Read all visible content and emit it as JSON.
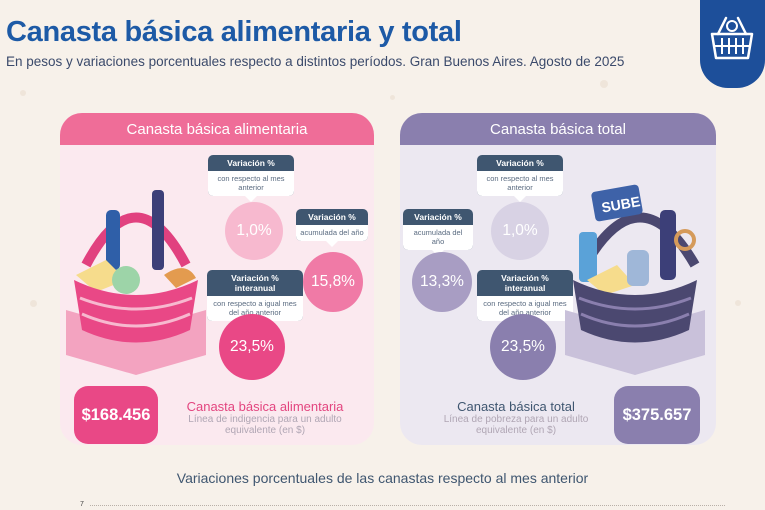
{
  "header": {
    "title": "Canasta básica alimentaria y total",
    "subtitle": "En pesos y variaciones porcentuales respecto a distintos períodos. Gran Buenos Aires. Agosto de 2025"
  },
  "logo": {
    "icon": "shopping-basket-icon",
    "color": "#1d4f9a"
  },
  "cba": {
    "header": "Canasta básica alimentaria",
    "monthly": {
      "tag_title": "Variación %",
      "tag_sub": "con respecto al mes anterior",
      "value": "1,0%"
    },
    "ytd": {
      "tag_title": "Variación %",
      "tag_sub": "acumulada del año",
      "value": "15,8%"
    },
    "yoy": {
      "tag_title": "Variación % interanual",
      "tag_sub": "con respecto a igual mes del año anterior",
      "value": "23,5%"
    },
    "price": "$168.456",
    "label_title": "Canasta básica alimentaria",
    "label_sub": "Línea de indigencia para un adulto equivalente (en $)",
    "accent": "#e94886"
  },
  "cbt": {
    "header": "Canasta básica total",
    "ytd": {
      "tag_title": "Variación %",
      "tag_sub": "acumulada del año",
      "value": "13,3%"
    },
    "monthly": {
      "tag_title": "Variación %",
      "tag_sub": "con respecto al mes anterior",
      "value": "1,0%"
    },
    "yoy": {
      "tag_title": "Variación % interanual",
      "tag_sub": "con respecto a igual mes del año anterior",
      "value": "23,5%"
    },
    "price": "$375.657",
    "label_title": "Canasta básica total",
    "label_sub": "Línea de pobreza para un adulto equivalente (en $)",
    "accent": "#8a7fae",
    "card_brand": "SUBE"
  },
  "chart_section": {
    "title": "Variaciones porcentuales de las canastas respecto al mes anterior",
    "first_tick": "7"
  }
}
